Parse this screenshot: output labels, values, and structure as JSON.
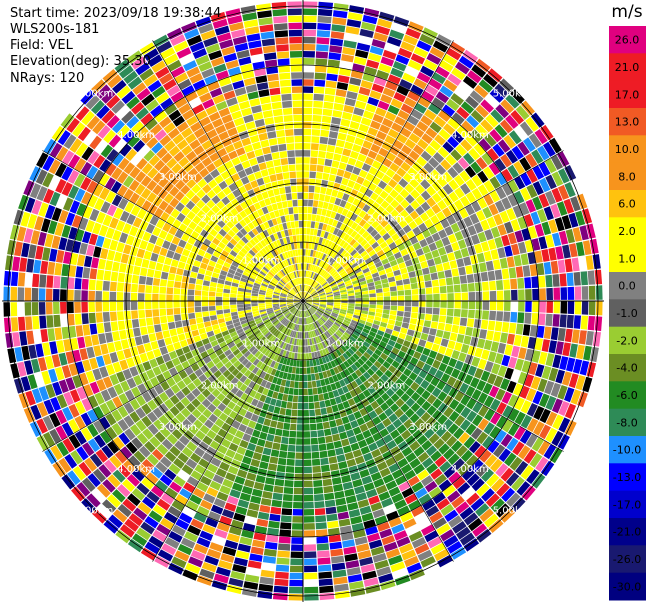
{
  "info": {
    "start_time": "Start time: 2023/09/18 19:38:44",
    "site": "WLS200s-181",
    "field": "Field: VEL",
    "elevation": "Elevation(deg): 35.30",
    "nrays": "NRays: 120"
  },
  "colorbar": {
    "unit": "m/s",
    "levels": [
      {
        "label": "26.0",
        "color": "#e0007f"
      },
      {
        "label": "21.0",
        "color": "#ee1c25"
      },
      {
        "label": "17.0",
        "color": "#ee1c25"
      },
      {
        "label": "13.0",
        "color": "#f15a24"
      },
      {
        "label": "10.0",
        "color": "#f7941d"
      },
      {
        "label": "8.0",
        "color": "#f7941d"
      },
      {
        "label": "6.0",
        "color": "#ffc20e"
      },
      {
        "label": "2.0",
        "color": "#ffff00"
      },
      {
        "label": "1.0",
        "color": "#ffff00"
      },
      {
        "label": "0.0",
        "color": "#808080"
      },
      {
        "label": "-1.0",
        "color": "#606060"
      },
      {
        "label": "-2.0",
        "color": "#9acd32"
      },
      {
        "label": "-4.0",
        "color": "#6b8e23"
      },
      {
        "label": "-6.0",
        "color": "#228b22"
      },
      {
        "label": "-8.0",
        "color": "#2e8b57"
      },
      {
        "label": "-10.0",
        "color": "#1e90ff"
      },
      {
        "label": "-13.0",
        "color": "#0000ff"
      },
      {
        "label": "-17.0",
        "color": "#0000cd"
      },
      {
        "label": "-21.0",
        "color": "#00008b"
      },
      {
        "label": "-26.0",
        "color": "#191970"
      },
      {
        "label": "-30.0",
        "color": "#000080"
      }
    ]
  },
  "chart_data": {
    "type": "heatmap",
    "subtype": "polar PPI",
    "field": "VEL",
    "unit": "m/s",
    "range_rings_km": [
      1.0,
      2.0,
      3.0,
      4.0,
      5.0
    ],
    "ring_labels": [
      "1.00km",
      "2.00km",
      "3.00km",
      "4.00km",
      "5.00km"
    ],
    "nrays": 120,
    "sectors": [
      {
        "azimuth": "north",
        "near_range": "yellow / gray",
        "far_range": "noisy mixed colors"
      },
      {
        "azimuth": "north-west",
        "near_range": "yellow",
        "mid_range": "orange",
        "far_range": "noisy mixed colors"
      },
      {
        "azimuth": "north-east",
        "near_range": "yellow",
        "mid_range": "orange",
        "far_range": "noisy mixed colors"
      },
      {
        "azimuth": "south",
        "near_range": "gray / green",
        "mid_range": "dark green",
        "far_range": "noisy mixed colors"
      },
      {
        "azimuth": "south-east",
        "near_range": "dark green",
        "mid_range": "dark green",
        "far_range": "noisy mixed colors"
      }
    ]
  }
}
